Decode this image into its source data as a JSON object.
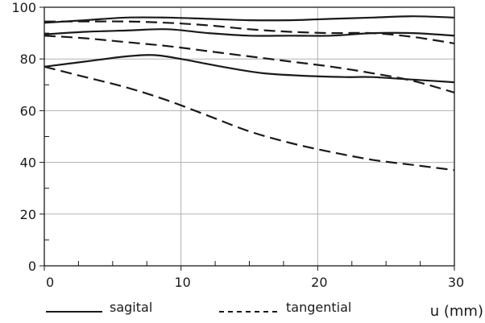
{
  "chart_data": {
    "type": "line",
    "title": "",
    "xlabel": "u (mm)",
    "ylabel": "",
    "xlim": [
      0,
      30
    ],
    "ylim": [
      0,
      100
    ],
    "x_ticks": [
      "0",
      "10",
      "20",
      "30"
    ],
    "y_ticks": [
      "0",
      "20",
      "40",
      "60",
      "80",
      "100"
    ],
    "grid": true,
    "legend": {
      "placement": "bottom",
      "entries": [
        {
          "label": "sagital",
          "style": "solid"
        },
        {
          "label": "tangential",
          "style": "dashed"
        }
      ]
    },
    "series": [
      {
        "style": "solid",
        "color": "#1a1a1a",
        "points": [
          [
            0,
            94
          ],
          [
            3,
            95
          ],
          [
            6,
            96
          ],
          [
            9,
            96
          ],
          [
            12,
            95.5
          ],
          [
            15,
            95
          ],
          [
            18,
            95
          ],
          [
            21,
            95.5
          ],
          [
            24,
            96
          ],
          [
            27,
            96.5
          ],
          [
            30,
            96
          ]
        ]
      },
      {
        "style": "solid",
        "color": "#1a1a1a",
        "points": [
          [
            0,
            89.5
          ],
          [
            3,
            90.5
          ],
          [
            6,
            91
          ],
          [
            9,
            91.5
          ],
          [
            12,
            90
          ],
          [
            15,
            89
          ],
          [
            18,
            89
          ],
          [
            21,
            89
          ],
          [
            24,
            90
          ],
          [
            27,
            90
          ],
          [
            30,
            89
          ]
        ]
      },
      {
        "style": "solid",
        "color": "#1a1a1a",
        "points": [
          [
            0,
            77
          ],
          [
            3,
            79
          ],
          [
            6,
            81
          ],
          [
            8,
            81.5
          ],
          [
            10,
            80
          ],
          [
            13,
            77
          ],
          [
            16,
            74.5
          ],
          [
            19,
            73.5
          ],
          [
            22,
            73
          ],
          [
            24,
            73
          ],
          [
            27,
            72
          ],
          [
            30,
            71
          ]
        ]
      },
      {
        "style": "dashed",
        "color": "#1a1a1a",
        "points": [
          [
            0,
            94.5
          ],
          [
            3,
            94.5
          ],
          [
            6,
            94.5
          ],
          [
            9,
            94
          ],
          [
            12,
            93
          ],
          [
            15,
            91.5
          ],
          [
            18,
            90.5
          ],
          [
            21,
            90
          ],
          [
            24,
            90
          ],
          [
            27,
            88.5
          ],
          [
            30,
            86
          ]
        ]
      },
      {
        "style": "dashed",
        "color": "#1a1a1a",
        "points": [
          [
            0,
            89
          ],
          [
            3,
            88
          ],
          [
            6,
            86.5
          ],
          [
            9,
            85
          ],
          [
            12,
            83
          ],
          [
            15,
            81
          ],
          [
            18,
            79
          ],
          [
            21,
            77
          ],
          [
            24,
            74.5
          ],
          [
            27,
            71.5
          ],
          [
            30,
            67
          ]
        ]
      },
      {
        "style": "dashed",
        "color": "#1a1a1a",
        "points": [
          [
            0,
            77
          ],
          [
            3,
            73
          ],
          [
            6,
            69
          ],
          [
            9,
            64
          ],
          [
            12,
            58
          ],
          [
            15,
            52
          ],
          [
            18,
            47.5
          ],
          [
            21,
            44
          ],
          [
            24,
            41
          ],
          [
            27,
            39
          ],
          [
            30,
            37
          ]
        ]
      }
    ]
  }
}
